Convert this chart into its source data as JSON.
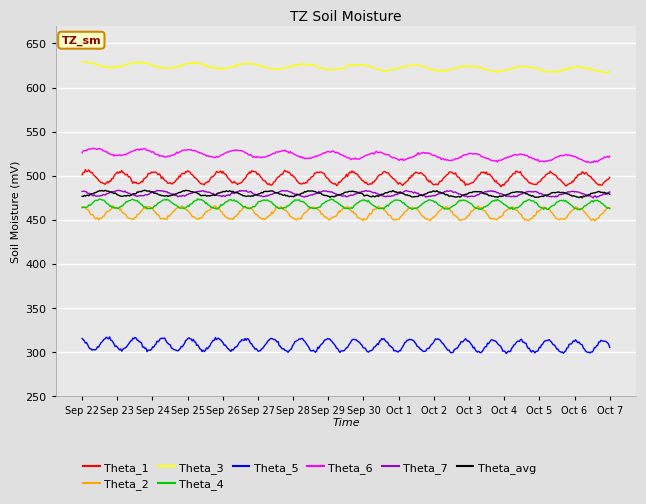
{
  "title": "TZ Soil Moisture",
  "ylabel": "Soil Moisture (mV)",
  "xlabel": "Time",
  "label_box": "TZ_sm",
  "ylim": [
    250,
    670
  ],
  "yticks": [
    250,
    300,
    350,
    400,
    450,
    500,
    550,
    600,
    650
  ],
  "x_labels": [
    "Sep 22",
    "Sep 23",
    "Sep 24",
    "Sep 25",
    "Sep 26",
    "Sep 27",
    "Sep 28",
    "Sep 29",
    "Sep 30",
    "Oct 1",
    "Oct 2",
    "Oct 3",
    "Oct 4",
    "Oct 5",
    "Oct 6",
    "Oct 7"
  ],
  "n_points": 480,
  "series_order": [
    "Theta_1",
    "Theta_2",
    "Theta_3",
    "Theta_4",
    "Theta_5",
    "Theta_6",
    "Theta_7",
    "Theta_avg"
  ],
  "series": {
    "Theta_1": {
      "color": "#FF0000",
      "base": 498,
      "amplitude": 7,
      "freq_mult": 1.0,
      "trend": -1.5,
      "noise": 0.8
    },
    "Theta_2": {
      "color": "#FFA500",
      "base": 458,
      "amplitude": 7,
      "freq_mult": 1.0,
      "trend": -1.5,
      "noise": 0.8
    },
    "Theta_3": {
      "color": "#FFFF00",
      "base": 626,
      "amplitude": 3,
      "freq_mult": 0.6,
      "trend": -6.0,
      "noise": 0.5
    },
    "Theta_4": {
      "color": "#00CC00",
      "base": 468,
      "amplitude": 5,
      "freq_mult": 1.0,
      "trend": -1.0,
      "noise": 0.5
    },
    "Theta_5": {
      "color": "#0000FF",
      "base": 309,
      "amplitude": 7,
      "freq_mult": 1.2,
      "trend": -3.0,
      "noise": 0.8
    },
    "Theta_6": {
      "color": "#FF00FF",
      "base": 527,
      "amplitude": 4,
      "freq_mult": 0.7,
      "trend": -8.0,
      "noise": 0.5
    },
    "Theta_7": {
      "color": "#9900CC",
      "base": 480,
      "amplitude": 3,
      "freq_mult": 0.8,
      "trend": -1.0,
      "noise": 0.4
    },
    "Theta_avg": {
      "color": "#000000",
      "base": 480,
      "amplitude": 3,
      "freq_mult": 0.8,
      "trend": -1.5,
      "noise": 0.4
    }
  },
  "background_color": "#E0E0E0",
  "plot_bg_color": "#E8E8E8",
  "legend_row1": [
    "Theta_1",
    "Theta_2",
    "Theta_3",
    "Theta_4",
    "Theta_5",
    "Theta_6"
  ],
  "legend_row2": [
    "Theta_7",
    "Theta_avg"
  ]
}
